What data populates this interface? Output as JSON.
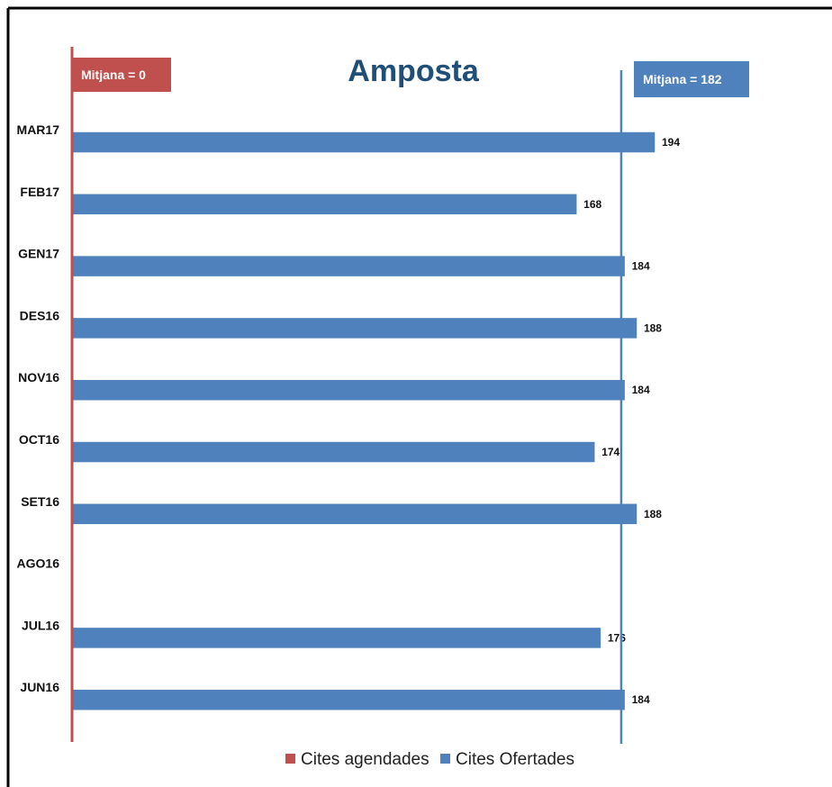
{
  "chart_data": {
    "type": "bar",
    "orientation": "horizontal",
    "title": "Amposta",
    "categories": [
      "MAR17",
      "FEB17",
      "GEN17",
      "DES16",
      "NOV16",
      "OCT16",
      "SET16",
      "AGO16",
      "JUL16",
      "JUN16"
    ],
    "series": [
      {
        "name": "Cites agendades",
        "values": [
          0,
          0,
          0,
          0,
          0,
          0,
          0,
          0,
          0,
          0
        ]
      },
      {
        "name": "Cites Ofertades",
        "values": [
          194,
          168,
          184,
          188,
          184,
          174,
          188,
          null,
          176,
          184
        ]
      }
    ],
    "xlim": [
      0,
      230
    ],
    "grid": false,
    "legend_position": "bottom",
    "reference_lines": [
      {
        "series": "Cites agendades",
        "value": 0,
        "label": "Mitjana = 0"
      },
      {
        "series": "Cites Ofertades",
        "value": 182,
        "label": "Mitjana = 182"
      }
    ]
  },
  "colors": {
    "agendades": "#c0504d",
    "ofertades": "#4f81bd",
    "title": "#1f4e79",
    "frame": "#000000"
  }
}
